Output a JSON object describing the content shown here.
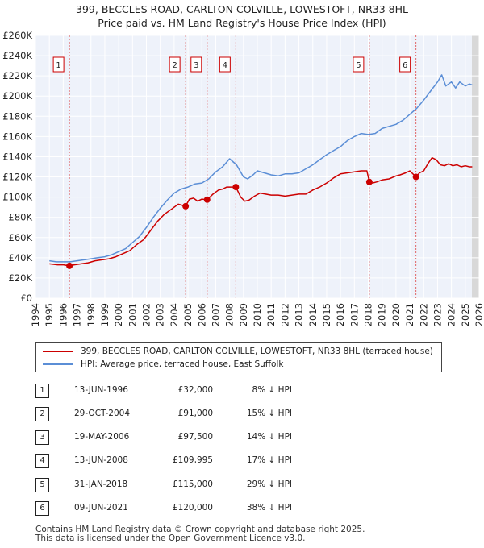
{
  "chart_data": {
    "type": "line",
    "title": "399, BECCLES ROAD, CARLTON COLVILLE, LOWESTOFT, NR33 8HL",
    "subtitle": "Price paid vs. HM Land Registry's House Price Index (HPI)",
    "xlabel": "",
    "ylabel": "",
    "xlim": [
      1994,
      2026
    ],
    "ylim": [
      0,
      260000
    ],
    "grid": true,
    "x_ticks": [
      "1994",
      "1995",
      "1996",
      "1997",
      "1998",
      "1999",
      "2000",
      "2001",
      "2002",
      "2003",
      "2004",
      "2005",
      "2006",
      "2007",
      "2008",
      "2009",
      "2010",
      "2011",
      "2012",
      "2013",
      "2014",
      "2015",
      "2016",
      "2017",
      "2018",
      "2019",
      "2020",
      "2021",
      "2022",
      "2023",
      "2024",
      "2025",
      "2026"
    ],
    "y_ticks": [
      {
        "value": 0,
        "label": "£0"
      },
      {
        "value": 20000,
        "label": "£20K"
      },
      {
        "value": 40000,
        "label": "£40K"
      },
      {
        "value": 60000,
        "label": "£60K"
      },
      {
        "value": 80000,
        "label": "£80K"
      },
      {
        "value": 100000,
        "label": "£100K"
      },
      {
        "value": 120000,
        "label": "£120K"
      },
      {
        "value": 140000,
        "label": "£140K"
      },
      {
        "value": 160000,
        "label": "£160K"
      },
      {
        "value": 180000,
        "label": "£180K"
      },
      {
        "value": 200000,
        "label": "£200K"
      },
      {
        "value": 220000,
        "label": "£220K"
      },
      {
        "value": 240000,
        "label": "£240K"
      },
      {
        "value": 260000,
        "label": "£260K"
      }
    ],
    "legend_position": "below-chart",
    "series": [
      {
        "name": "399, BECCLES ROAD, CARLTON COLVILLE, LOWESTOFT, NR33 8HL (terraced house)",
        "color": "#cc0000",
        "x": [
          1995.0,
          1995.3,
          1995.6,
          1996.0,
          1996.45,
          1996.8,
          1997.3,
          1997.8,
          1998.3,
          1998.8,
          1999.3,
          1999.8,
          2000.3,
          2000.8,
          2001.3,
          2001.8,
          2002.3,
          2002.8,
          2003.3,
          2003.8,
          2004.3,
          2004.83,
          2005.1,
          2005.4,
          2005.7,
          2006.0,
          2006.38,
          2006.8,
          2007.2,
          2007.5,
          2007.8,
          2008.1,
          2008.45,
          2008.8,
          2009.1,
          2009.4,
          2009.8,
          2010.2,
          2010.6,
          2011.0,
          2011.5,
          2012.0,
          2012.5,
          2013.0,
          2013.5,
          2014.0,
          2014.5,
          2015.0,
          2015.5,
          2016.0,
          2016.5,
          2017.0,
          2017.5,
          2017.9,
          2018.08,
          2018.3,
          2018.6,
          2019.0,
          2019.5,
          2020.0,
          2020.3,
          2020.7,
          2021.0,
          2021.44,
          2021.7,
          2022.0,
          2022.3,
          2022.6,
          2022.9,
          2023.2,
          2023.5,
          2023.8,
          2024.1,
          2024.4,
          2024.7,
          2025.0,
          2025.3,
          2025.5
        ],
        "y": [
          34000,
          33500,
          33000,
          33000,
          32000,
          33000,
          34000,
          35000,
          37000,
          38000,
          39000,
          41000,
          44000,
          47000,
          53000,
          58000,
          67000,
          76000,
          83000,
          88000,
          93000,
          91000,
          98000,
          99000,
          96000,
          98000,
          97500,
          103000,
          107000,
          108000,
          110000,
          110000,
          109995,
          100000,
          96000,
          97000,
          101000,
          104000,
          103000,
          102000,
          102000,
          101000,
          102000,
          103000,
          103000,
          107000,
          110000,
          114000,
          119000,
          123000,
          124000,
          125000,
          126000,
          126000,
          115000,
          114000,
          115000,
          117000,
          118000,
          121000,
          122000,
          124000,
          126000,
          120000,
          124000,
          126000,
          133000,
          139000,
          137000,
          132000,
          131000,
          133000,
          131000,
          132000,
          130000,
          131000,
          130000,
          130000
        ]
      },
      {
        "name": "HPI: Average price, terraced house, East Suffolk",
        "color": "#5b8ed6",
        "x": [
          1995.0,
          1995.5,
          1996.0,
          1996.5,
          1997.0,
          1997.5,
          1998.0,
          1998.5,
          1999.0,
          1999.5,
          2000.0,
          2000.5,
          2001.0,
          2001.5,
          2002.0,
          2002.5,
          2003.0,
          2003.5,
          2004.0,
          2004.5,
          2005.0,
          2005.5,
          2006.0,
          2006.5,
          2007.0,
          2007.5,
          2008.0,
          2008.5,
          2009.0,
          2009.3,
          2009.7,
          2010.0,
          2010.5,
          2011.0,
          2011.5,
          2012.0,
          2012.5,
          2013.0,
          2013.5,
          2014.0,
          2014.5,
          2015.0,
          2015.5,
          2016.0,
          2016.5,
          2017.0,
          2017.5,
          2018.0,
          2018.5,
          2019.0,
          2019.5,
          2020.0,
          2020.5,
          2021.0,
          2021.5,
          2022.0,
          2022.5,
          2023.0,
          2023.3,
          2023.6,
          2024.0,
          2024.3,
          2024.6,
          2025.0,
          2025.3,
          2025.5
        ],
        "y": [
          37000,
          36000,
          36000,
          36000,
          37000,
          38000,
          39000,
          40000,
          41000,
          43000,
          46000,
          49000,
          55000,
          61000,
          70000,
          80000,
          89000,
          97000,
          104000,
          108000,
          110000,
          113000,
          114000,
          118000,
          125000,
          130000,
          138000,
          132000,
          120000,
          118000,
          122000,
          126000,
          124000,
          122000,
          121000,
          123000,
          123000,
          124000,
          128000,
          132000,
          137000,
          142000,
          146000,
          150000,
          156000,
          160000,
          163000,
          162000,
          163000,
          168000,
          170000,
          172000,
          176000,
          182000,
          188000,
          196000,
          205000,
          214000,
          221000,
          210000,
          214000,
          208000,
          214000,
          210000,
          212000,
          211000
        ]
      }
    ],
    "sales": [
      {
        "marker": "1",
        "year": 1996.45,
        "price": 32000
      },
      {
        "marker": "2",
        "year": 2004.83,
        "price": 91000
      },
      {
        "marker": "3",
        "year": 2006.38,
        "price": 97500
      },
      {
        "marker": "4",
        "year": 2008.45,
        "price": 109995
      },
      {
        "marker": "5",
        "year": 2018.08,
        "price": 115000
      },
      {
        "marker": "6",
        "year": 2021.44,
        "price": 120000
      }
    ]
  },
  "legend": {
    "property_label": "399, BECCLES ROAD, CARLTON COLVILLE, LOWESTOFT, NR33 8HL (terraced house)",
    "hpi_label": "HPI: Average price, terraced house, East Suffolk"
  },
  "sales_table": [
    {
      "num": "1",
      "date": "13-JUN-1996",
      "price": "£32,000",
      "hpi": "8% ↓ HPI"
    },
    {
      "num": "2",
      "date": "29-OCT-2004",
      "price": "£91,000",
      "hpi": "15% ↓ HPI"
    },
    {
      "num": "3",
      "date": "19-MAY-2006",
      "price": "£97,500",
      "hpi": "14% ↓ HPI"
    },
    {
      "num": "4",
      "date": "13-JUN-2008",
      "price": "£109,995",
      "hpi": "17% ↓ HPI"
    },
    {
      "num": "5",
      "date": "31-JAN-2018",
      "price": "£115,000",
      "hpi": "29% ↓ HPI"
    },
    {
      "num": "6",
      "date": "09-JUN-2021",
      "price": "£120,000",
      "hpi": "38% ↓ HPI"
    }
  ],
  "footer": {
    "line1": "Contains HM Land Registry data © Crown copyright and database right 2025.",
    "line2": "This data is licensed under the Open Government Licence v3.0."
  }
}
